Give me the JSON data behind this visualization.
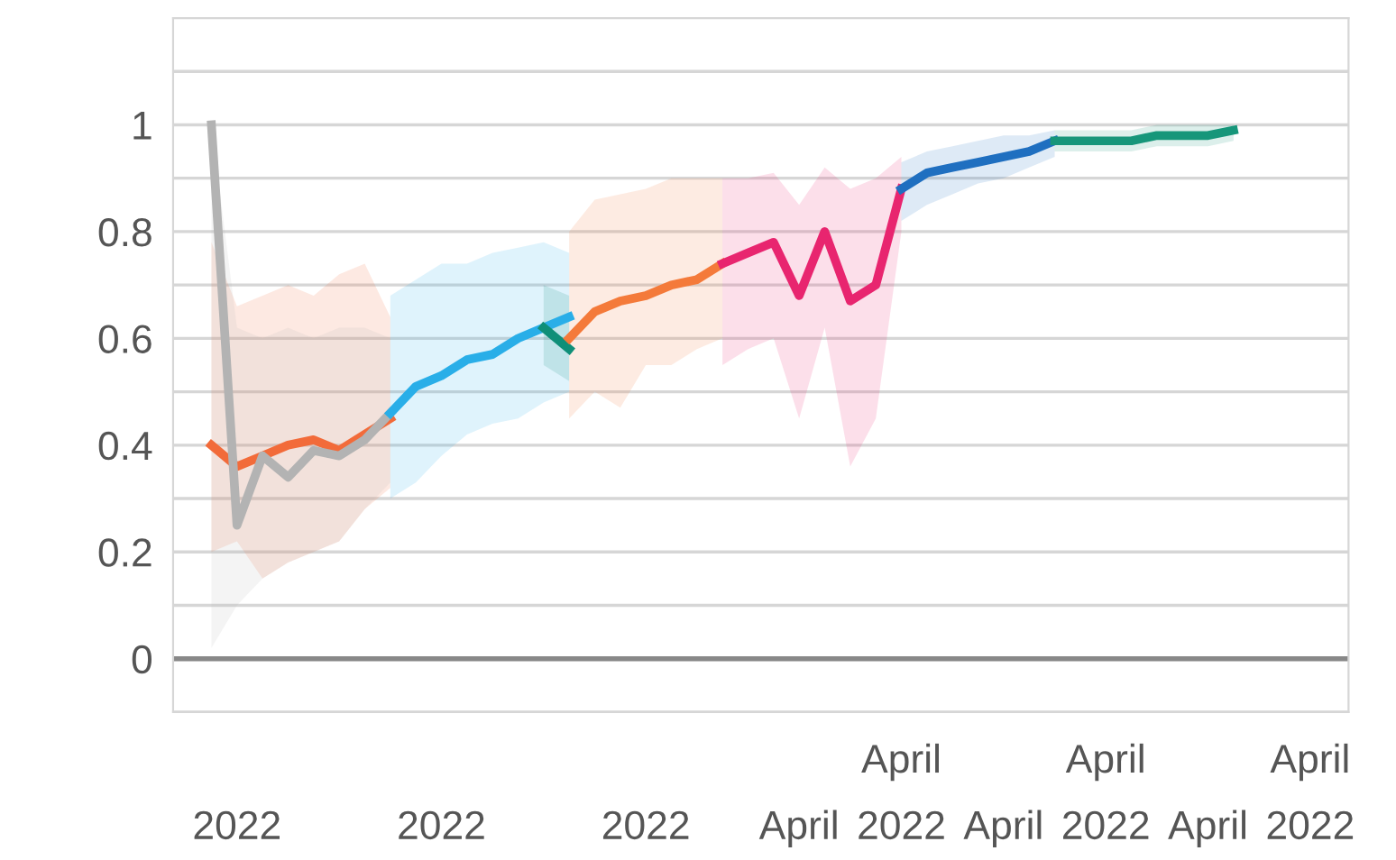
{
  "chart_data": {
    "type": "line",
    "categories": [
      null,
      null,
      "2022",
      null,
      null,
      null,
      null,
      null,
      null,
      null,
      "2022",
      null,
      null,
      null,
      null,
      null,
      null,
      null,
      "2022",
      null,
      null,
      null,
      null,
      null,
      "April",
      null,
      null,
      null,
      "April\n2022",
      null,
      null,
      null,
      "April",
      null,
      null,
      null,
      "April\n2022",
      null,
      null,
      null,
      "April",
      null,
      null,
      null,
      "April\n2022",
      null
    ],
    "series": [
      {
        "color": "#f26b3a",
        "values": [
          null,
          0.4,
          0.36,
          0.38,
          0.4,
          0.41,
          0.39,
          0.42,
          0.45,
          null,
          null,
          null,
          null,
          null,
          null,
          null,
          null,
          null,
          null,
          null,
          null,
          null,
          null,
          null,
          null,
          null,
          null,
          null,
          null,
          null,
          null,
          null,
          null,
          null,
          null,
          null,
          null,
          null,
          null,
          null,
          null,
          null,
          null,
          null,
          null,
          null
        ],
        "lower": [
          null,
          0.2,
          0.22,
          0.15,
          0.18,
          0.2,
          0.22,
          0.28,
          0.32,
          null,
          null,
          null,
          null,
          null,
          null,
          null,
          null,
          null,
          null,
          null,
          null,
          null,
          null,
          null,
          null,
          null,
          null,
          null,
          null,
          null,
          null,
          null,
          null,
          null,
          null,
          null,
          null,
          null,
          null,
          null,
          null,
          null,
          null,
          null,
          null,
          null
        ],
        "upper": [
          null,
          0.78,
          0.66,
          0.68,
          0.7,
          0.68,
          0.72,
          0.74,
          0.64,
          null,
          null,
          null,
          null,
          null,
          null,
          null,
          null,
          null,
          null,
          null,
          null,
          null,
          null,
          null,
          null,
          null,
          null,
          null,
          null,
          null,
          null,
          null,
          null,
          null,
          null,
          null,
          null,
          null,
          null,
          null,
          null,
          null,
          null,
          null,
          null,
          null
        ]
      },
      {
        "color": "#b3b3b3",
        "values": [
          null,
          1.0,
          0.25,
          0.38,
          0.34,
          0.39,
          0.38,
          0.41,
          0.46,
          null,
          null,
          null,
          null,
          null,
          null,
          null,
          null,
          null,
          null,
          null,
          null,
          null,
          null,
          null,
          null,
          null,
          null,
          null,
          null,
          null,
          null,
          null,
          null,
          null,
          null,
          null,
          null,
          null,
          null,
          null,
          null,
          null,
          null,
          null,
          null,
          null
        ],
        "lower": [
          null,
          0.02,
          0.1,
          0.15,
          0.18,
          0.2,
          0.22,
          0.28,
          0.33,
          null,
          null,
          null,
          null,
          null,
          null,
          null,
          null,
          null,
          null,
          null,
          null,
          null,
          null,
          null,
          null,
          null,
          null,
          null,
          null,
          null,
          null,
          null,
          null,
          null,
          null,
          null,
          null,
          null,
          null,
          null,
          null,
          null,
          null,
          null,
          null,
          null
        ],
        "upper": [
          null,
          1.0,
          0.62,
          0.6,
          0.62,
          0.6,
          0.62,
          0.62,
          0.6,
          null,
          null,
          null,
          null,
          null,
          null,
          null,
          null,
          null,
          null,
          null,
          null,
          null,
          null,
          null,
          null,
          null,
          null,
          null,
          null,
          null,
          null,
          null,
          null,
          null,
          null,
          null,
          null,
          null,
          null,
          null,
          null,
          null,
          null,
          null,
          null,
          null
        ]
      },
      {
        "color": "#29aee8",
        "values": [
          null,
          null,
          null,
          null,
          null,
          null,
          null,
          null,
          0.46,
          0.51,
          0.53,
          0.56,
          0.57,
          0.6,
          0.62,
          0.64,
          null,
          null,
          null,
          null,
          null,
          null,
          null,
          null,
          null,
          null,
          null,
          null,
          null,
          null,
          null,
          null,
          null,
          null,
          null,
          null,
          null,
          null,
          null,
          null,
          null,
          null,
          null,
          null,
          null,
          null
        ],
        "lower": [
          null,
          null,
          null,
          null,
          null,
          null,
          null,
          null,
          0.3,
          0.33,
          0.38,
          0.42,
          0.44,
          0.45,
          0.48,
          0.5,
          null,
          null,
          null,
          null,
          null,
          null,
          null,
          null,
          null,
          null,
          null,
          null,
          null,
          null,
          null,
          null,
          null,
          null,
          null,
          null,
          null,
          null,
          null,
          null,
          null,
          null,
          null,
          null,
          null,
          null
        ],
        "upper": [
          null,
          null,
          null,
          null,
          null,
          null,
          null,
          null,
          0.68,
          0.71,
          0.74,
          0.74,
          0.76,
          0.77,
          0.78,
          0.76,
          null,
          null,
          null,
          null,
          null,
          null,
          null,
          null,
          null,
          null,
          null,
          null,
          null,
          null,
          null,
          null,
          null,
          null,
          null,
          null,
          null,
          null,
          null,
          null,
          null,
          null,
          null,
          null,
          null,
          null
        ]
      },
      {
        "color": "#0f8f78",
        "values": [
          null,
          null,
          null,
          null,
          null,
          null,
          null,
          null,
          null,
          null,
          null,
          null,
          null,
          null,
          0.62,
          0.58,
          null,
          null,
          null,
          null,
          null,
          null,
          null,
          null,
          null,
          null,
          null,
          null,
          null,
          null,
          null,
          null,
          null,
          null,
          null,
          null,
          null,
          null,
          null,
          null,
          null,
          null,
          null,
          null,
          null,
          null
        ],
        "lower": [
          null,
          null,
          null,
          null,
          null,
          null,
          null,
          null,
          null,
          null,
          null,
          null,
          null,
          null,
          0.55,
          0.52,
          null,
          null,
          null,
          null,
          null,
          null,
          null,
          null,
          null,
          null,
          null,
          null,
          null,
          null,
          null,
          null,
          null,
          null,
          null,
          null,
          null,
          null,
          null,
          null,
          null,
          null,
          null,
          null,
          null,
          null
        ],
        "upper": [
          null,
          null,
          null,
          null,
          null,
          null,
          null,
          null,
          null,
          null,
          null,
          null,
          null,
          null,
          0.7,
          0.68,
          null,
          null,
          null,
          null,
          null,
          null,
          null,
          null,
          null,
          null,
          null,
          null,
          null,
          null,
          null,
          null,
          null,
          null,
          null,
          null,
          null,
          null,
          null,
          null,
          null,
          null,
          null,
          null,
          null,
          null
        ]
      },
      {
        "color": "#f47a3a",
        "values": [
          null,
          null,
          null,
          null,
          null,
          null,
          null,
          null,
          null,
          null,
          null,
          null,
          null,
          null,
          null,
          0.6,
          0.65,
          0.67,
          0.68,
          0.7,
          0.71,
          0.74,
          null,
          null,
          null,
          null,
          null,
          null,
          null,
          null,
          null,
          null,
          null,
          null,
          null,
          null,
          null,
          null,
          null,
          null,
          null,
          null,
          null,
          null,
          null,
          null
        ],
        "lower": [
          null,
          null,
          null,
          null,
          null,
          null,
          null,
          null,
          null,
          null,
          null,
          null,
          null,
          null,
          null,
          0.45,
          0.5,
          0.47,
          0.55,
          0.55,
          0.58,
          0.6,
          null,
          null,
          null,
          null,
          null,
          null,
          null,
          null,
          null,
          null,
          null,
          null,
          null,
          null,
          null,
          null,
          null,
          null,
          null,
          null,
          null,
          null,
          null,
          null
        ],
        "upper": [
          null,
          null,
          null,
          null,
          null,
          null,
          null,
          null,
          null,
          null,
          null,
          null,
          null,
          null,
          null,
          0.8,
          0.86,
          0.87,
          0.88,
          0.9,
          0.9,
          0.9,
          null,
          null,
          null,
          null,
          null,
          null,
          null,
          null,
          null,
          null,
          null,
          null,
          null,
          null,
          null,
          null,
          null,
          null,
          null,
          null,
          null,
          null,
          null,
          null
        ]
      },
      {
        "color": "#e8256f",
        "values": [
          null,
          null,
          null,
          null,
          null,
          null,
          null,
          null,
          null,
          null,
          null,
          null,
          null,
          null,
          null,
          null,
          null,
          null,
          null,
          null,
          null,
          0.74,
          0.76,
          0.78,
          0.68,
          0.8,
          0.67,
          0.7,
          0.88,
          null,
          null,
          null,
          null,
          null,
          null,
          null,
          null,
          null,
          null,
          null,
          null,
          null,
          null,
          null,
          null,
          null
        ],
        "lower": [
          null,
          null,
          null,
          null,
          null,
          null,
          null,
          null,
          null,
          null,
          null,
          null,
          null,
          null,
          null,
          null,
          null,
          null,
          null,
          null,
          null,
          0.55,
          0.58,
          0.6,
          0.45,
          0.62,
          0.36,
          0.45,
          0.8,
          null,
          null,
          null,
          null,
          null,
          null,
          null,
          null,
          null,
          null,
          null,
          null,
          null,
          null,
          null,
          null,
          null
        ],
        "upper": [
          null,
          null,
          null,
          null,
          null,
          null,
          null,
          null,
          null,
          null,
          null,
          null,
          null,
          null,
          null,
          null,
          null,
          null,
          null,
          null,
          null,
          0.9,
          0.9,
          0.91,
          0.85,
          0.92,
          0.88,
          0.9,
          0.94,
          null,
          null,
          null,
          null,
          null,
          null,
          null,
          null,
          null,
          null,
          null,
          null,
          null,
          null,
          null,
          null,
          null
        ]
      },
      {
        "color": "#1f6fc0",
        "values": [
          null,
          null,
          null,
          null,
          null,
          null,
          null,
          null,
          null,
          null,
          null,
          null,
          null,
          null,
          null,
          null,
          null,
          null,
          null,
          null,
          null,
          null,
          null,
          null,
          null,
          null,
          null,
          null,
          0.88,
          0.91,
          0.92,
          0.93,
          0.94,
          0.95,
          0.97,
          null,
          null,
          null,
          null,
          null,
          null,
          null,
          null,
          null,
          null,
          null
        ],
        "lower": [
          null,
          null,
          null,
          null,
          null,
          null,
          null,
          null,
          null,
          null,
          null,
          null,
          null,
          null,
          null,
          null,
          null,
          null,
          null,
          null,
          null,
          null,
          null,
          null,
          null,
          null,
          null,
          null,
          0.82,
          0.85,
          0.87,
          0.89,
          0.9,
          0.92,
          0.94,
          null,
          null,
          null,
          null,
          null,
          null,
          null,
          null,
          null,
          null,
          null
        ],
        "upper": [
          null,
          null,
          null,
          null,
          null,
          null,
          null,
          null,
          null,
          null,
          null,
          null,
          null,
          null,
          null,
          null,
          null,
          null,
          null,
          null,
          null,
          null,
          null,
          null,
          null,
          null,
          null,
          null,
          0.93,
          0.95,
          0.96,
          0.97,
          0.98,
          0.98,
          0.99,
          null,
          null,
          null,
          null,
          null,
          null,
          null,
          null,
          null,
          null,
          null
        ]
      },
      {
        "color": "#16967a",
        "values": [
          null,
          null,
          null,
          null,
          null,
          null,
          null,
          null,
          null,
          null,
          null,
          null,
          null,
          null,
          null,
          null,
          null,
          null,
          null,
          null,
          null,
          null,
          null,
          null,
          null,
          null,
          null,
          null,
          null,
          null,
          null,
          null,
          null,
          null,
          0.97,
          0.97,
          0.97,
          0.97,
          0.98,
          0.98,
          0.98,
          0.99,
          null,
          null,
          null,
          null
        ],
        "lower": [
          null,
          null,
          null,
          null,
          null,
          null,
          null,
          null,
          null,
          null,
          null,
          null,
          null,
          null,
          null,
          null,
          null,
          null,
          null,
          null,
          null,
          null,
          null,
          null,
          null,
          null,
          null,
          null,
          null,
          null,
          null,
          null,
          null,
          null,
          0.95,
          0.95,
          0.95,
          0.95,
          0.96,
          0.96,
          0.96,
          0.97,
          null,
          null,
          null,
          null
        ],
        "upper": [
          null,
          null,
          null,
          null,
          null,
          null,
          null,
          null,
          null,
          null,
          null,
          null,
          null,
          null,
          null,
          null,
          null,
          null,
          null,
          null,
          null,
          null,
          null,
          null,
          null,
          null,
          null,
          null,
          null,
          null,
          null,
          null,
          null,
          null,
          0.99,
          0.99,
          0.99,
          0.99,
          1.0,
          1.0,
          1.0,
          1.0,
          null,
          null,
          null,
          null
        ]
      }
    ],
    "ylim": [
      -0.1,
      1.2
    ],
    "yticks": [
      {
        "value": -0.1,
        "label": null
      },
      0,
      {
        "value": 0.1,
        "label": null
      },
      0.2,
      {
        "value": 0.3,
        "label": null
      },
      0.4,
      {
        "value": 0.5,
        "label": null
      },
      0.6,
      {
        "value": 0.7,
        "label": null
      },
      0.8,
      {
        "value": 0.9,
        "label": null
      },
      1,
      {
        "value": 1.1,
        "label": null
      }
    ],
    "ref_lines": [
      {
        "axis": "y",
        "value": 0,
        "color": "#888888"
      }
    ],
    "grid": "y",
    "line_style": "solid",
    "legend": false
  }
}
